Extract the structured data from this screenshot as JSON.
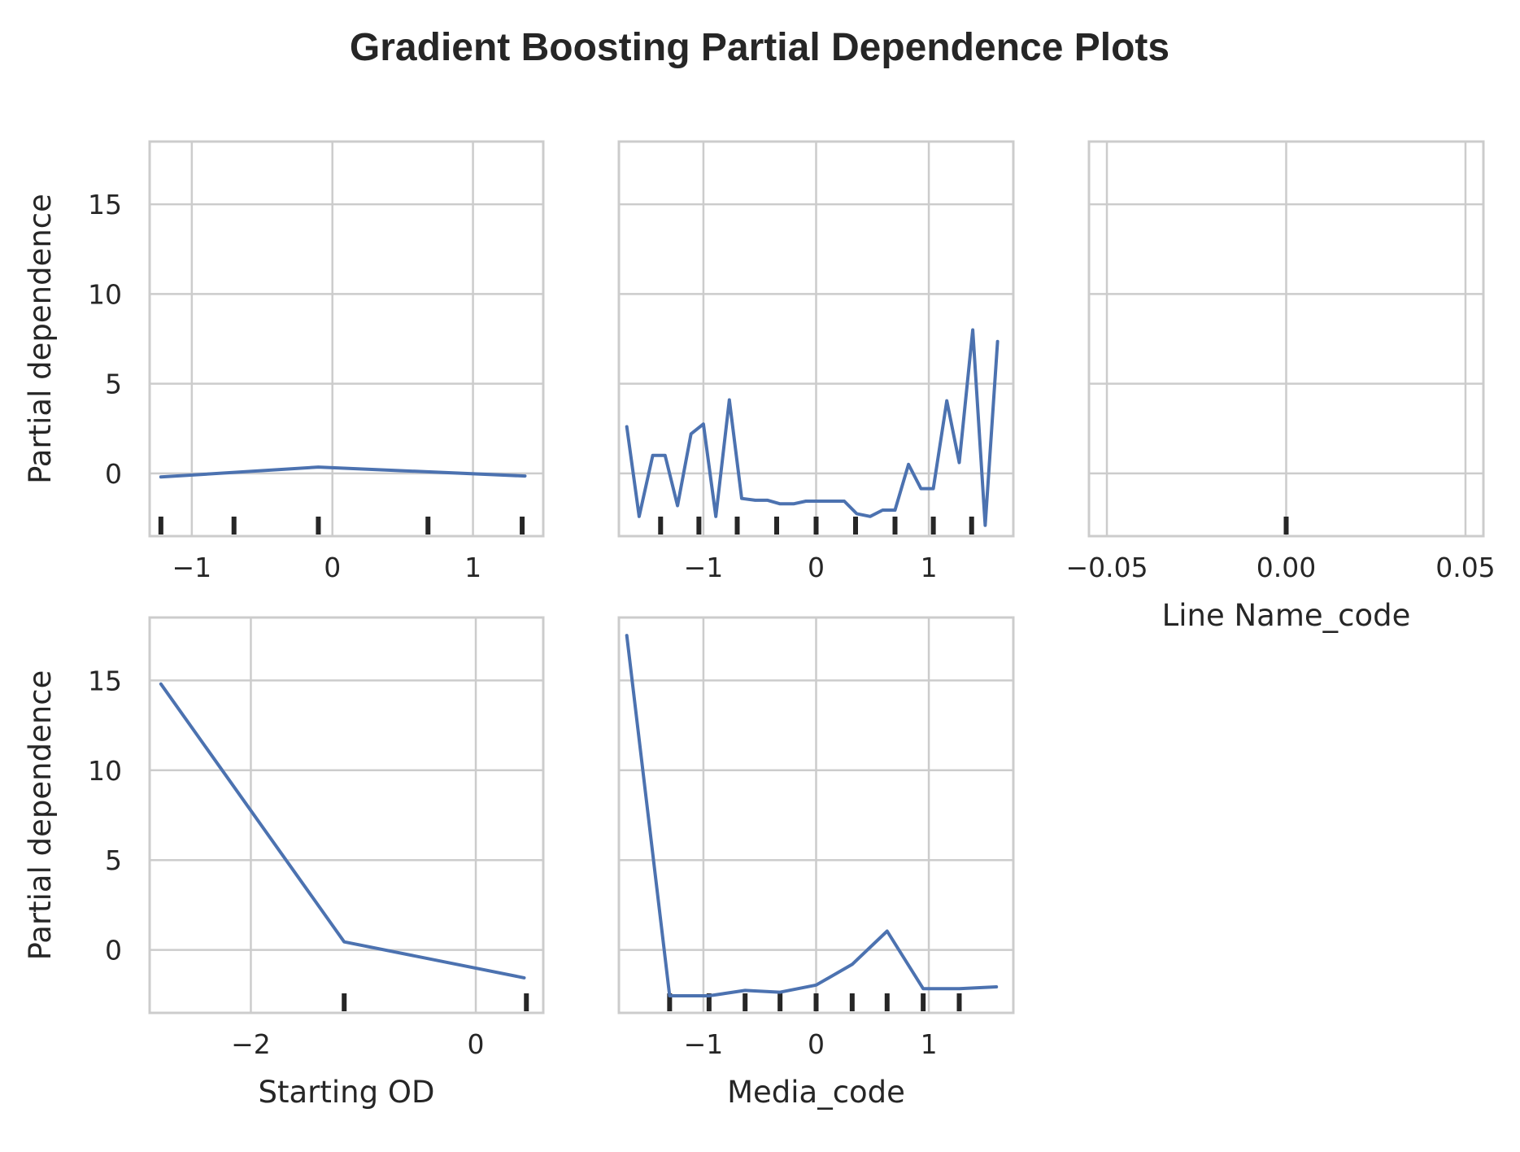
{
  "title": "Gradient Boosting Partial Dependence Plots",
  "colors": {
    "line": "#4c72b0",
    "grid": "#cccccc",
    "rug": "#262626",
    "text": "#262626"
  },
  "chart_data": [
    {
      "type": "line",
      "position": "row1-col1",
      "xlabel": "",
      "ylabel": "Partial dependence",
      "xlim": [
        -1.3,
        1.5
      ],
      "ylim": [
        -3.5,
        18.5
      ],
      "xticks": [
        -1,
        0,
        1
      ],
      "xtick_labels": [
        "−1",
        "0",
        "1"
      ],
      "yticks": [
        0,
        5,
        10,
        15
      ],
      "ytick_labels": [
        "0",
        "5",
        "10",
        "15"
      ],
      "show_yticklabels": true,
      "series": [
        {
          "x": [
            -1.22,
            -0.1,
            1.37
          ],
          "y": [
            -0.2,
            0.35,
            -0.15
          ]
        }
      ],
      "rug": [
        -1.22,
        -0.7,
        -0.1,
        0.68,
        1.35
      ],
      "grid": true
    },
    {
      "type": "line",
      "position": "row1-col2",
      "xlabel": "",
      "ylabel": "",
      "xlim": [
        -1.75,
        1.75
      ],
      "ylim": [
        -3.5,
        18.5
      ],
      "xticks": [
        -1,
        0,
        1
      ],
      "xtick_labels": [
        "−1",
        "0",
        "1"
      ],
      "yticks": [
        0,
        5,
        10,
        15
      ],
      "ytick_labels": [
        "0",
        "5",
        "10",
        "15"
      ],
      "show_yticklabels": false,
      "series": [
        {
          "x": [
            -1.68,
            -1.57,
            -1.45,
            -1.34,
            -1.23,
            -1.11,
            -1.0,
            -0.89,
            -0.77,
            -0.66,
            -0.54,
            -0.43,
            -0.32,
            -0.2,
            -0.09,
            0.02,
            0.14,
            0.25,
            0.36,
            0.48,
            0.59,
            0.7,
            0.82,
            0.93,
            1.04,
            1.16,
            1.27,
            1.39,
            1.5,
            1.61
          ],
          "y": [
            2.6,
            -2.4,
            1.0,
            1.0,
            -1.8,
            2.2,
            2.75,
            -2.4,
            4.1,
            -1.4,
            -1.5,
            -1.5,
            -1.7,
            -1.7,
            -1.55,
            -1.55,
            -1.55,
            -1.55,
            -2.25,
            -2.4,
            -2.05,
            -2.05,
            0.5,
            -0.85,
            -0.85,
            4.05,
            0.6,
            8.0,
            -2.9,
            7.35
          ]
        }
      ],
      "rug": [
        -1.38,
        -1.04,
        -0.7,
        -0.35,
        0.0,
        0.35,
        0.7,
        1.04,
        1.38
      ],
      "grid": true
    },
    {
      "type": "line",
      "position": "row1-col3",
      "xlabel": "Line Name_code",
      "ylabel": "",
      "xlim": [
        -0.055,
        0.055
      ],
      "ylim": [
        -3.5,
        18.5
      ],
      "xticks": [
        -0.05,
        0.0,
        0.05
      ],
      "xtick_labels": [
        "−0.05",
        "0.00",
        "0.05"
      ],
      "yticks": [
        0,
        5,
        10,
        15
      ],
      "ytick_labels": [
        "0",
        "5",
        "10",
        "15"
      ],
      "show_yticklabels": false,
      "series": [],
      "rug": [
        0.0
      ],
      "grid": true
    },
    {
      "type": "line",
      "position": "row2-col1",
      "xlabel": "Starting OD",
      "ylabel": "Partial dependence",
      "xlim": [
        -2.9,
        0.6
      ],
      "ylim": [
        -3.5,
        18.5
      ],
      "xticks": [
        -2,
        0
      ],
      "xtick_labels": [
        "−2",
        "0"
      ],
      "yticks": [
        0,
        5,
        10,
        15
      ],
      "ytick_labels": [
        "0",
        "5",
        "10",
        "15"
      ],
      "show_yticklabels": true,
      "series": [
        {
          "x": [
            -2.8,
            -1.17,
            0.43
          ],
          "y": [
            14.8,
            0.45,
            -1.55
          ]
        }
      ],
      "rug": [
        -1.17,
        0.45
      ],
      "grid": true
    },
    {
      "type": "line",
      "position": "row2-col2",
      "xlabel": "Media_code",
      "ylabel": "",
      "xlim": [
        -1.75,
        1.75
      ],
      "ylim": [
        -3.5,
        18.5
      ],
      "xticks": [
        -1,
        0,
        1
      ],
      "xtick_labels": [
        "−1",
        "0",
        "1"
      ],
      "yticks": [
        0,
        5,
        10,
        15
      ],
      "ytick_labels": [
        "0",
        "5",
        "10",
        "15"
      ],
      "show_yticklabels": false,
      "series": [
        {
          "x": [
            -1.68,
            -1.3,
            -0.95,
            -0.63,
            -0.32,
            0.0,
            0.32,
            0.63,
            0.95,
            1.27,
            1.6
          ],
          "y": [
            17.5,
            -2.55,
            -2.55,
            -2.25,
            -2.35,
            -1.95,
            -0.8,
            1.05,
            -2.15,
            -2.15,
            -2.05
          ]
        }
      ],
      "rug": [
        -1.3,
        -0.95,
        -0.63,
        -0.32,
        0.0,
        0.32,
        0.63,
        0.95,
        1.27
      ],
      "grid": true
    }
  ]
}
